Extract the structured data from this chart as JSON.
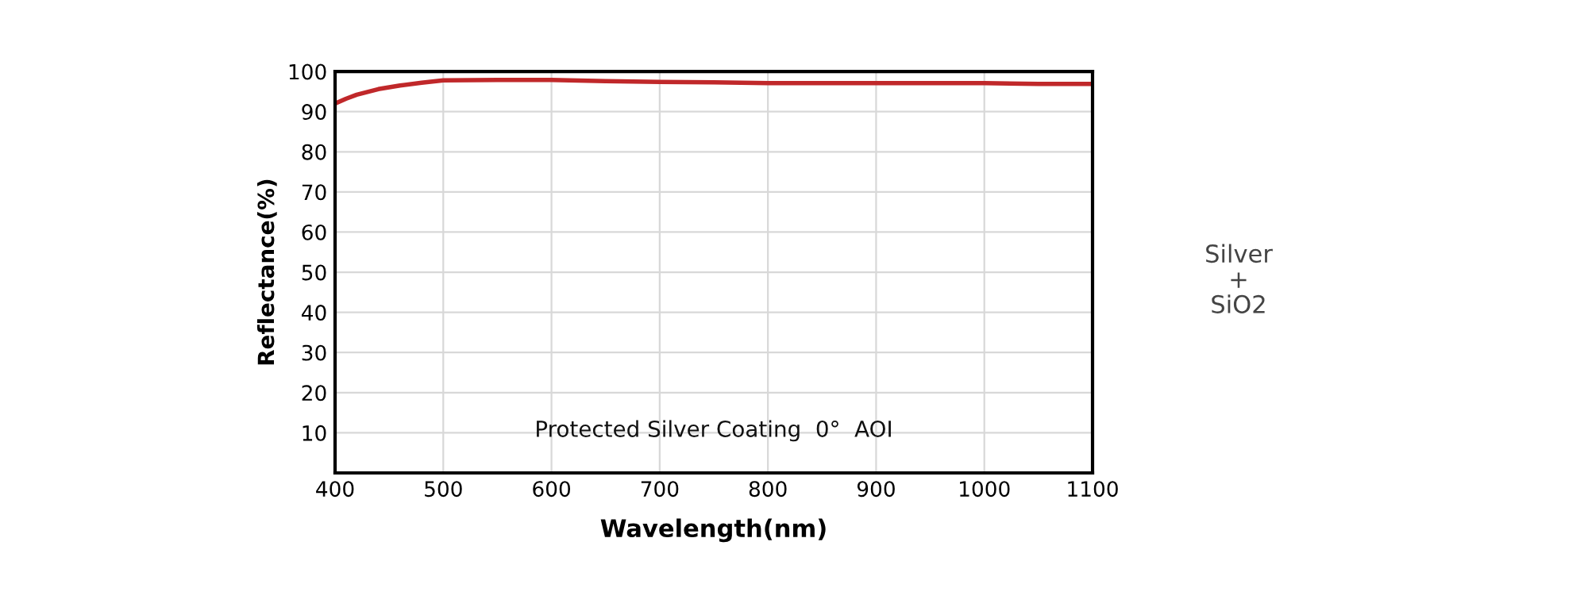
{
  "chart_data": {
    "type": "line",
    "xlabel": "Wavelength(nm)",
    "ylabel": "Reflectance(%)",
    "x": [
      400,
      410,
      420,
      440,
      460,
      480,
      500,
      550,
      600,
      650,
      700,
      750,
      800,
      850,
      900,
      950,
      1000,
      1050,
      1100
    ],
    "series": [
      {
        "color": "#c0282a",
        "values": [
          92,
          93.2,
          94.2,
          95.6,
          96.5,
          97.2,
          97.8,
          97.9,
          97.9,
          97.6,
          97.4,
          97.3,
          97.1,
          97.1,
          97.1,
          97.1,
          97.1,
          96.9,
          96.9
        ]
      }
    ],
    "xlim": [
      400,
      1100
    ],
    "xticks": [
      400,
      500,
      600,
      700,
      800,
      900,
      1000,
      1100
    ],
    "ylim": [
      0,
      100
    ],
    "yticks": [
      {
        "value": 0,
        "label": null
      },
      10,
      20,
      30,
      40,
      50,
      60,
      70,
      80,
      90,
      100
    ],
    "grid": true,
    "legend": false,
    "marker": "none",
    "line_style": "solid",
    "annotations": [
      "Protected Silver Coating  0°  AOI",
      "Silver\n+\nSiO2"
    ]
  }
}
